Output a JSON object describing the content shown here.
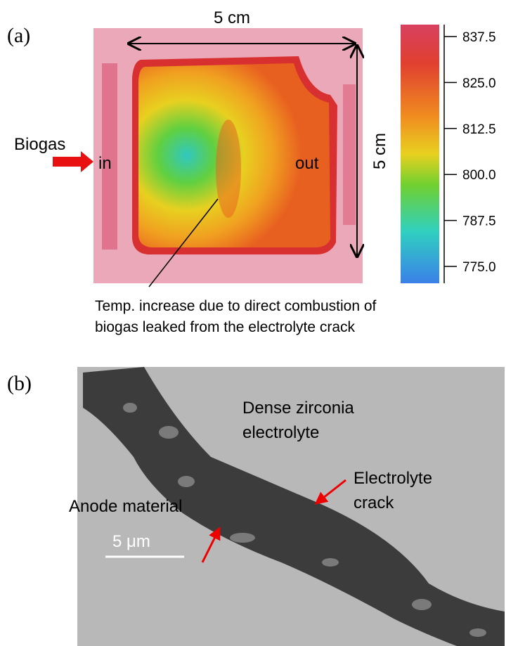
{
  "panel_a": {
    "label": "(a)",
    "width_label": "5 cm",
    "height_label": "5 cm",
    "inlet_label": "Biogas",
    "in_label": "in",
    "out_label": "out",
    "colorbar": {
      "labels": [
        "837.5",
        "825.0",
        "812.5",
        "800.0",
        "787.5",
        "775.0"
      ]
    },
    "caption": [
      "Temp. increase due to direct combustion of",
      "biogas leaked from the electrolyte crack"
    ]
  },
  "panel_b": {
    "label": "(b)",
    "annotations": [
      "Dense zirconia",
      "electrolyte",
      "Electrolyte",
      "crack",
      "Anode material"
    ],
    "scale_bar": "5 μm"
  }
}
